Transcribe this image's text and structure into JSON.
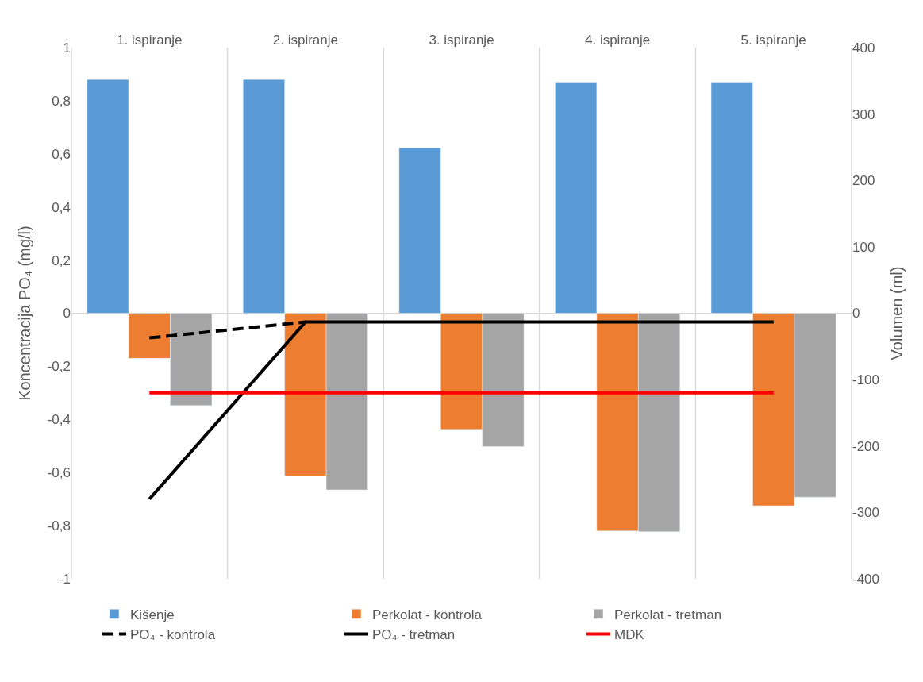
{
  "chart_data": {
    "type": "bar",
    "categories": [
      "1. ispiranje",
      "2. ispiranje",
      "3. ispiranje",
      "4. ispiranje",
      "5. ispiranje"
    ],
    "ylabel": "Koncentracija PO₄ (mg/l)",
    "y2label": "Volumen (ml)",
    "ylim": [
      -1,
      1
    ],
    "yticks": [
      {
        "value": -1,
        "label": "-1"
      },
      {
        "value": -0.8,
        "label": "-0,8"
      },
      {
        "value": -0.6,
        "label": "-0,6"
      },
      {
        "value": -0.4,
        "label": "-0,4"
      },
      {
        "value": -0.2,
        "label": "-0,2"
      },
      0,
      {
        "value": 0.2,
        "label": "0,2"
      },
      {
        "value": 0.4,
        "label": "0,4"
      },
      {
        "value": 0.6,
        "label": "0,6"
      },
      {
        "value": 0.8,
        "label": "0,8"
      },
      1
    ],
    "y2lim": [
      -400,
      400
    ],
    "y2ticks": [
      -400,
      -300,
      -200,
      -100,
      0,
      100,
      200,
      300,
      400
    ],
    "series": [
      {
        "name": "Kišenje",
        "axis": "y2",
        "color": "#5b9bd5",
        "values": [
          352,
          352,
          249,
          348,
          348
        ]
      },
      {
        "name": "Perkolat - kontrola",
        "axis": "y2",
        "color": "#ed7d31",
        "values": [
          -68,
          -245,
          -175,
          -328,
          -290
        ]
      },
      {
        "name": "Perkolat - tretman",
        "axis": "y2",
        "color": "#a5a5a5",
        "values": [
          -139,
          -266,
          -201,
          -329,
          -277
        ]
      },
      {
        "name": "PO₄ - kontrola",
        "type": "line",
        "line_style": "dashed",
        "color": "#000000",
        "values": [
          -0.093,
          -0.033,
          null,
          null,
          null
        ]
      },
      {
        "name": "PO₄ - tretman",
        "type": "line",
        "line_style": "solid",
        "color": "#000000",
        "values": [
          -0.7,
          -0.033,
          -0.033,
          -0.033,
          -0.033
        ]
      },
      {
        "name": "MDK",
        "type": "line",
        "line_style": "solid",
        "color": "#ff0000",
        "values": [
          -0.3,
          -0.3,
          -0.3,
          -0.3,
          -0.3
        ]
      }
    ],
    "grid": "x",
    "legend": "bottom"
  }
}
